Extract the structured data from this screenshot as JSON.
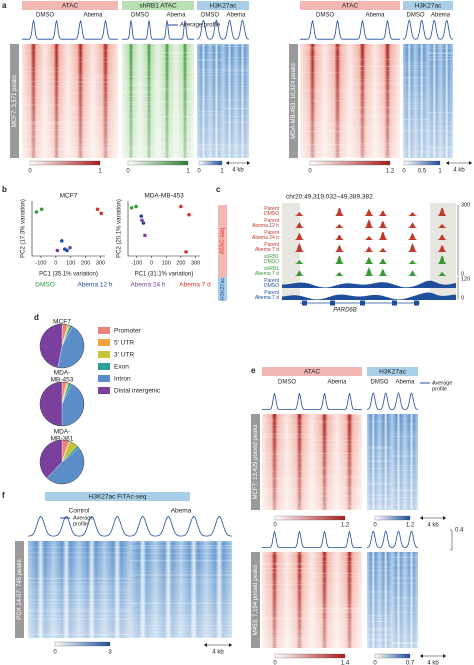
{
  "labels": [
    "a",
    "b",
    "c",
    "d",
    "e",
    "f"
  ],
  "a": {
    "left": {
      "headers": [
        "ATAC",
        "shRB1 ATAC",
        "H3K27ac"
      ],
      "conditions": [
        "DMSO",
        "Abema",
        "DMSO",
        "Abema",
        "DMSO",
        "Abema"
      ],
      "legend": "Average profile",
      "row_label": "MCF7: 3,571 peaks",
      "colorbar_labels": [
        "0",
        "1",
        "0",
        "1",
        "0",
        "1"
      ],
      "scale": "4 kb"
    },
    "right": {
      "headers": [
        "ATAC",
        "H3K27ac"
      ],
      "conditions": [
        "DMSO",
        "Abema",
        "DMSO",
        "Abema"
      ],
      "row_label": "MDA-MB-453: 10,324 peaks",
      "colorbar_labels": [
        "0",
        "1.2",
        "0",
        "0.5",
        "1"
      ],
      "scale": "4 kb"
    }
  },
  "b": {
    "plots": [
      {
        "title": "MCF7",
        "xlabel": "PC1 (35.1% variation)",
        "ylabel": "PC2 (17.3% variation)",
        "xlim": [
          -160,
          330
        ],
        "ylim": [
          -1,
          1
        ],
        "xticks": [
          -100,
          0,
          100,
          200,
          300
        ],
        "x": [
          -130,
          -95,
          40,
          60,
          75,
          10,
          95,
          280,
          305
        ],
        "y": [
          0.6,
          0.7,
          -0.45,
          -0.75,
          -0.8,
          -0.8,
          -0.7,
          0.7,
          0.55
        ],
        "group": [
          0,
          0,
          1,
          1,
          1,
          2,
          2,
          3,
          3
        ]
      },
      {
        "title": "MDA-MB-453",
        "xlabel": "PC1 (31.1% variation)",
        "ylabel": "PC2 (20.1% variation)",
        "xlim": [
          -160,
          330
        ],
        "ylim": [
          -1,
          1
        ],
        "xticks": [
          -100,
          0,
          100,
          200,
          300
        ],
        "x": [
          -135,
          -105,
          -70,
          -55,
          -65,
          -45,
          200,
          255,
          235
        ],
        "y": [
          0.75,
          0.8,
          0.45,
          0.2,
          0.3,
          -0.25,
          0.8,
          0.5,
          -0.85
        ],
        "group": [
          0,
          0,
          1,
          1,
          2,
          2,
          3,
          3,
          3
        ]
      }
    ],
    "groups": [
      {
        "name": "DMSO",
        "color": "#2e9e3e"
      },
      {
        "name": "Abema 12 h",
        "color": "#1f4e9c"
      },
      {
        "name": "Abema 24 h",
        "color": "#7b3f9e"
      },
      {
        "name": "Abema 7 d",
        "color": "#d3322b"
      }
    ]
  },
  "c": {
    "region": "chr20:49,319,032–49,389,382",
    "assays": [
      {
        "name": "ATAC-seq",
        "color": "#d3322b"
      },
      {
        "name": "H3K27ac",
        "color": "#1f4e9c"
      }
    ],
    "tracks": [
      {
        "lines": [
          "Parent",
          "DMSO"
        ],
        "color": "#c0392b"
      },
      {
        "lines": [
          "Parent",
          "Abema 12 h"
        ],
        "color": "#c0392b"
      },
      {
        "lines": [
          "Parent",
          "Abema 24 h"
        ],
        "color": "#c0392b"
      },
      {
        "lines": [
          "Parent",
          "Abema 7 d"
        ],
        "color": "#c0392b"
      },
      {
        "lines": [
          "shRB1",
          "DMSO"
        ],
        "color": "#3a9a3a"
      },
      {
        "lines": [
          "shRB1",
          "Abema 7 d"
        ],
        "color": "#3a9a3a"
      },
      {
        "lines": [
          "Parent",
          "DMSO"
        ],
        "color": "#1f4e9c"
      },
      {
        "lines": [
          "Parent",
          "Abema 7 d"
        ],
        "color": "#1f4e9c"
      }
    ],
    "scales": [
      "300",
      "0",
      "120",
      "0"
    ],
    "gene": "PARD6B"
  },
  "d": {
    "categories": [
      "Promoter",
      "5' UTR",
      "3' UTR",
      "Exon",
      "Intron",
      "Distal intergenic"
    ],
    "colors": [
      "#e9837d",
      "#f0a23c",
      "#c8c43a",
      "#2aa198",
      "#5b8ec9",
      "#7b3f9e"
    ],
    "pies": [
      {
        "title": [
          "MCF7"
        ],
        "values": [
          4,
          1,
          1,
          2,
          45,
          47
        ]
      },
      {
        "title": [
          "MDA-",
          "MB-453"
        ],
        "values": [
          3,
          1,
          1,
          2,
          43,
          50
        ]
      },
      {
        "title": [
          "MDA-",
          "MB-361"
        ],
        "values": [
          5,
          1,
          6,
          2,
          48,
          38
        ]
      }
    ]
  },
  "e": {
    "headers": [
      "ATAC",
      "H3K27ac"
    ],
    "conditions": [
      "DMSO",
      "Abema",
      "DMSO",
      "Abema"
    ],
    "legend": [
      "Average",
      "profile"
    ],
    "blocks": [
      {
        "row_label": "MCF7: 13,429 poised peaks",
        "colorbar_labels": [
          "0",
          "1.2",
          "0",
          "1.2"
        ],
        "scale": "4 kb"
      },
      {
        "row_label": "M453: 7,194 poised peaks",
        "profile_max": "0.4",
        "colorbar_labels": [
          "0",
          "1.4",
          "0",
          "0.7"
        ],
        "scale": "4 kb"
      }
    ]
  },
  "f": {
    "header": "H3K27ac FiTAc-seq",
    "conditions": [
      "Control",
      "Abema"
    ],
    "legend": [
      "Average",
      "profile"
    ],
    "row_label": "PDX 14-07: 745 peaks",
    "colorbar_labels": [
      "0",
      "3"
    ],
    "scale": "4 kb"
  }
}
